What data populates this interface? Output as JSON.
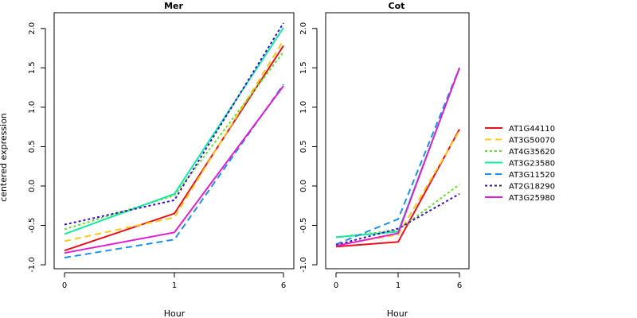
{
  "chart_data": {
    "type": "line",
    "ylabel": "centered expression",
    "colors": {
      "AT1G44110": "#e8121a",
      "AT3G50070": "#ffc81e",
      "AT4G35620": "#5fe02a",
      "AT3G23580": "#16e8a0",
      "AT3G11520": "#1e90e8",
      "AT2G18290": "#3a0cc8",
      "AT3G25980": "#e020d0"
    },
    "dashes": {
      "AT1G44110": "",
      "AT3G50070": "8,5",
      "AT4G35620": "3,3",
      "AT3G23580": "",
      "AT3G11520": "8,5",
      "AT2G18290": "3,3",
      "AT3G25980": ""
    },
    "legend": [
      "AT1G44110",
      "AT3G50070",
      "AT4G35620",
      "AT3G23580",
      "AT3G11520",
      "AT2G18290",
      "AT3G25980"
    ],
    "panels": [
      {
        "title": "Mer",
        "xlabel": "Hour",
        "x_ticks": [
          "0",
          "1",
          "6"
        ],
        "y_ticks": [
          "-1.0",
          "-0.5",
          "0.0",
          "0.5",
          "1.0",
          "1.5",
          "2.0"
        ],
        "ylim": [
          -1.05,
          2.2
        ],
        "series": [
          {
            "name": "AT1G44110",
            "values": [
              -0.82,
              -0.35,
              1.78
            ]
          },
          {
            "name": "AT3G50070",
            "values": [
              -0.7,
              -0.4,
              1.85
            ]
          },
          {
            "name": "AT4G35620",
            "values": [
              -0.55,
              -0.12,
              1.7
            ]
          },
          {
            "name": "AT3G23580",
            "values": [
              -0.61,
              -0.1,
              2.01
            ]
          },
          {
            "name": "AT3G11520",
            "values": [
              -0.91,
              -0.68,
              1.29
            ]
          },
          {
            "name": "AT2G18290",
            "values": [
              -0.49,
              -0.18,
              2.07
            ]
          },
          {
            "name": "AT3G25980",
            "values": [
              -0.85,
              -0.59,
              1.27
            ]
          }
        ]
      },
      {
        "title": "Cot",
        "xlabel": "Hour",
        "x_ticks": [
          "0",
          "1",
          "6"
        ],
        "y_ticks": [
          "-1.0",
          "-0.5",
          "0.0",
          "0.5",
          "1.0",
          "1.5",
          "2.0"
        ],
        "ylim": [
          -1.05,
          2.2
        ],
        "series": [
          {
            "name": "AT1G44110",
            "values": [
              -0.77,
              -0.71,
              0.72
            ]
          },
          {
            "name": "AT3G50070",
            "values": [
              -0.75,
              -0.62,
              0.7
            ]
          },
          {
            "name": "AT4G35620",
            "values": [
              -0.65,
              -0.56,
              0.02
            ]
          },
          {
            "name": "AT3G23580",
            "values": [
              -0.65,
              -0.58,
              1.49
            ]
          },
          {
            "name": "AT3G11520",
            "values": [
              -0.74,
              -0.42,
              1.5
            ]
          },
          {
            "name": "AT2G18290",
            "values": [
              -0.75,
              -0.54,
              -0.1
            ]
          },
          {
            "name": "AT3G25980",
            "values": [
              -0.76,
              -0.6,
              1.5
            ]
          }
        ]
      }
    ]
  }
}
